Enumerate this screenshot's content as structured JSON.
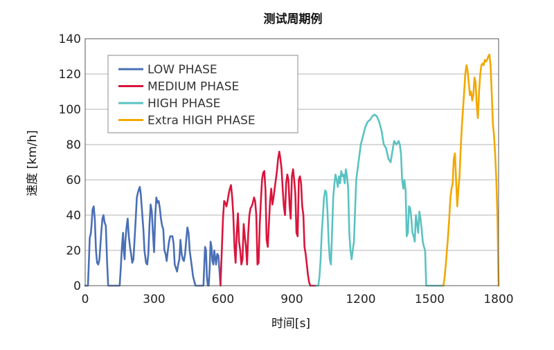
{
  "chart_data": {
    "type": "line",
    "title": "测试周期例",
    "xlabel": "时间[s]",
    "ylabel": "速度 [km/h]",
    "xlim": [
      0,
      1800
    ],
    "ylim": [
      0,
      140
    ],
    "xticks": [
      "0",
      "300",
      "600",
      "900",
      "1200",
      "1500",
      "1800"
    ],
    "yticks": [
      "0",
      "20",
      "40",
      "60",
      "80",
      "100",
      "120",
      "140"
    ],
    "grid": "horizontal",
    "legend_position": "top-left",
    "series": [
      {
        "name": "LOW PHASE",
        "color": "#4a6fb5",
        "x": [
          0,
          12,
          15,
          20,
          25,
          28,
          32,
          37,
          42,
          47,
          52,
          57,
          62,
          70,
          75,
          80,
          84,
          90,
          95,
          100,
          108,
          120,
          135,
          150,
          155,
          160,
          165,
          168,
          172,
          175,
          180,
          185,
          190,
          195,
          200,
          205,
          210,
          215,
          220,
          225,
          230,
          235,
          238,
          242,
          246,
          250,
          254,
          258,
          262,
          265,
          270,
          275,
          280,
          285,
          290,
          295,
          300,
          305,
          310,
          315,
          320,
          325,
          330,
          335,
          340,
          345,
          350,
          355,
          360,
          365,
          370,
          375,
          380,
          385,
          390,
          395,
          400,
          405,
          410,
          415,
          420,
          425,
          430,
          435,
          440,
          445,
          450,
          455,
          460,
          470,
          480,
          500,
          515,
          518,
          522,
          526,
          530,
          534,
          538,
          542,
          546,
          550,
          554,
          558,
          562,
          566,
          570,
          575,
          580,
          585,
          589
        ],
        "y": [
          0,
          0,
          10,
          27,
          30,
          35,
          43,
          45,
          38,
          20,
          13,
          12,
          15,
          30,
          38,
          40,
          36,
          34,
          15,
          0,
          0,
          0,
          0,
          0,
          10,
          22,
          30,
          20,
          15,
          25,
          33,
          38,
          28,
          22,
          18,
          13,
          15,
          26,
          38,
          50,
          53,
          55,
          56,
          52,
          45,
          38,
          31,
          20,
          16,
          13,
          12,
          18,
          35,
          46,
          42,
          30,
          19,
          40,
          50,
          47,
          48,
          44,
          38,
          34,
          32,
          20,
          18,
          14,
          20,
          25,
          28,
          28,
          28,
          24,
          12,
          10,
          8,
          12,
          15,
          26,
          18,
          15,
          14,
          18,
          26,
          33,
          30,
          20,
          15,
          5,
          0,
          0,
          0,
          10,
          22,
          20,
          5,
          0,
          0,
          10,
          25,
          22,
          14,
          12,
          20,
          16,
          12,
          18,
          17,
          8,
          0
        ]
      },
      {
        "name": "MEDIUM PHASE",
        "color": "#d9143c",
        "x": [
          589,
          595,
          600,
          605,
          610,
          615,
          620,
          625,
          630,
          635,
          640,
          645,
          650,
          655,
          660,
          665,
          670,
          675,
          680,
          685,
          690,
          695,
          700,
          705,
          710,
          715,
          720,
          725,
          730,
          735,
          740,
          745,
          750,
          755,
          760,
          765,
          770,
          775,
          780,
          785,
          790,
          795,
          800,
          805,
          810,
          815,
          820,
          825,
          830,
          835,
          840,
          845,
          850,
          855,
          860,
          865,
          870,
          875,
          880,
          885,
          890,
          895,
          900,
          905,
          910,
          915,
          920,
          925,
          930,
          935,
          940,
          945,
          950,
          955,
          960,
          965,
          970,
          975,
          980,
          985,
          990,
          995,
          1000,
          1005
        ],
        "y": [
          0,
          20,
          38,
          48,
          47,
          45,
          48,
          52,
          55,
          57,
          50,
          40,
          22,
          13,
          30,
          41,
          25,
          20,
          12,
          15,
          35,
          28,
          22,
          12,
          30,
          40,
          44,
          45,
          47,
          50,
          48,
          40,
          12,
          13,
          35,
          48,
          60,
          64,
          65,
          54,
          26,
          22,
          35,
          48,
          55,
          46,
          50,
          55,
          60,
          65,
          72,
          76,
          72,
          66,
          55,
          45,
          40,
          58,
          63,
          60,
          45,
          38,
          62,
          66,
          60,
          52,
          30,
          28,
          60,
          62,
          58,
          45,
          40,
          22,
          18,
          12,
          6,
          2,
          0,
          0,
          0,
          0,
          0,
          0
        ]
      },
      {
        "name": "HIGH PHASE",
        "color": "#5ac2c2",
        "x": [
          1005,
          1010,
          1015,
          1020,
          1025,
          1030,
          1035,
          1040,
          1045,
          1050,
          1055,
          1060,
          1065,
          1070,
          1075,
          1080,
          1085,
          1090,
          1095,
          1100,
          1105,
          1110,
          1115,
          1120,
          1125,
          1130,
          1135,
          1140,
          1145,
          1150,
          1155,
          1160,
          1170,
          1180,
          1190,
          1200,
          1210,
          1220,
          1230,
          1240,
          1250,
          1260,
          1270,
          1280,
          1290,
          1300,
          1310,
          1320,
          1330,
          1340,
          1345,
          1350,
          1355,
          1360,
          1365,
          1370,
          1375,
          1380,
          1385,
          1390,
          1395,
          1400,
          1405,
          1410,
          1415,
          1420,
          1425,
          1430,
          1435,
          1440,
          1445,
          1450,
          1455,
          1460,
          1465,
          1470,
          1475,
          1480,
          1485,
          1490,
          1495,
          1500,
          1505,
          1510,
          1515,
          1520,
          1525,
          1530,
          1535,
          1540,
          1545,
          1550,
          1555
        ],
        "y": [
          0,
          0,
          0,
          5,
          15,
          30,
          40,
          50,
          54,
          53,
          42,
          25,
          15,
          12,
          30,
          50,
          58,
          63,
          60,
          56,
          62,
          58,
          65,
          62,
          63,
          58,
          66,
          62,
          55,
          30,
          20,
          15,
          25,
          60,
          70,
          80,
          85,
          90,
          93,
          94,
          96,
          97,
          96,
          93,
          88,
          80,
          78,
          72,
          70,
          78,
          82,
          81,
          80,
          81,
          82,
          80,
          75,
          60,
          55,
          60,
          54,
          28,
          30,
          45,
          44,
          38,
          30,
          28,
          25,
          40,
          35,
          30,
          42,
          38,
          32,
          25,
          22,
          20,
          0,
          0,
          0,
          0,
          0,
          0,
          0,
          0,
          0,
          0,
          0,
          0,
          0,
          0,
          0
        ]
      },
      {
        "name": "Extra HIGH PHASE",
        "color": "#f2a800",
        "x": [
          1555,
          1560,
          1565,
          1570,
          1575,
          1580,
          1585,
          1590,
          1595,
          1600,
          1605,
          1610,
          1615,
          1620,
          1625,
          1630,
          1635,
          1640,
          1645,
          1650,
          1655,
          1660,
          1665,
          1670,
          1675,
          1680,
          1685,
          1690,
          1695,
          1700,
          1705,
          1710,
          1715,
          1720,
          1725,
          1730,
          1735,
          1740,
          1745,
          1750,
          1755,
          1760,
          1765,
          1770,
          1775,
          1780,
          1785,
          1790,
          1795,
          1800
        ],
        "y": [
          0,
          0,
          5,
          12,
          20,
          28,
          38,
          50,
          55,
          58,
          72,
          75,
          60,
          45,
          55,
          62,
          78,
          90,
          100,
          110,
          120,
          125,
          122,
          115,
          108,
          110,
          105,
          108,
          118,
          115,
          102,
          95,
          110,
          120,
          125,
          126,
          125,
          128,
          127,
          128,
          130,
          131,
          125,
          110,
          92,
          85,
          75,
          60,
          40,
          0
        ]
      }
    ]
  }
}
